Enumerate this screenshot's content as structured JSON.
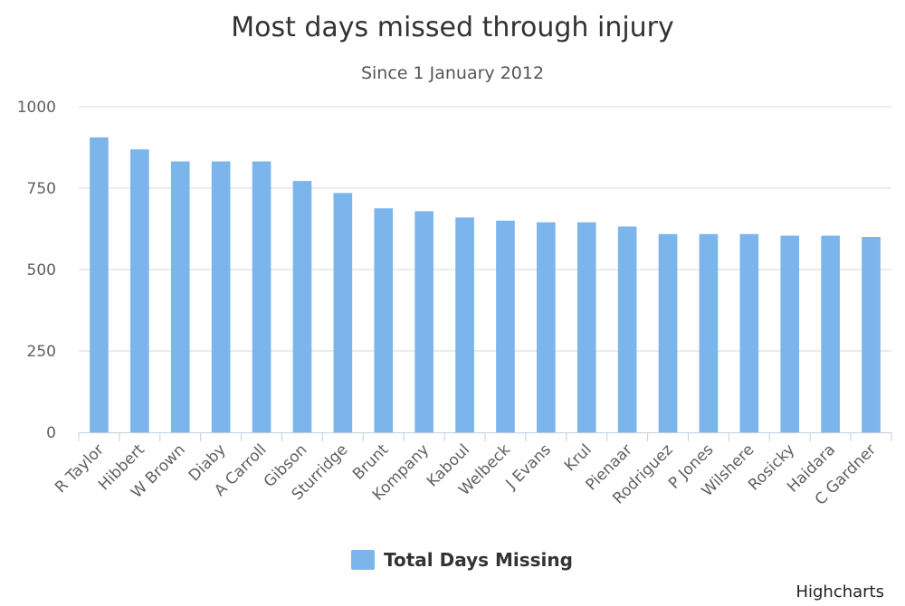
{
  "chart_data": {
    "type": "bar",
    "title": "Most days missed through injury",
    "subtitle": "Since 1 January 2012",
    "xlabel": "",
    "ylabel": "",
    "ylim": [
      0,
      1000
    ],
    "yticks": [
      0,
      250,
      500,
      750,
      1000
    ],
    "grid": true,
    "legend_position": "bottom-center",
    "categories": [
      "R Taylor",
      "Hibbert",
      "W Brown",
      "Diaby",
      "A Carroll",
      "Gibson",
      "Sturridge",
      "Brunt",
      "Kompany",
      "Kaboul",
      "Welbeck",
      "J Evans",
      "Krul",
      "Pienaar",
      "Rodriguez",
      "P Jones",
      "Wilshere",
      "Rosicky",
      "Haidara",
      "C Gardner"
    ],
    "series": [
      {
        "name": "Total Days Missing",
        "color": "#7cb5ec",
        "values": [
          906,
          869,
          832,
          832,
          832,
          772,
          735,
          688,
          679,
          660,
          650,
          645,
          645,
          632,
          609,
          609,
          609,
          604,
          604,
          600
        ]
      }
    ]
  },
  "credits": {
    "text": "Highcharts"
  },
  "colors": {
    "bar": "#7cb5ec",
    "grid": "#d8d8d8",
    "axis": "#c0d0e0"
  }
}
